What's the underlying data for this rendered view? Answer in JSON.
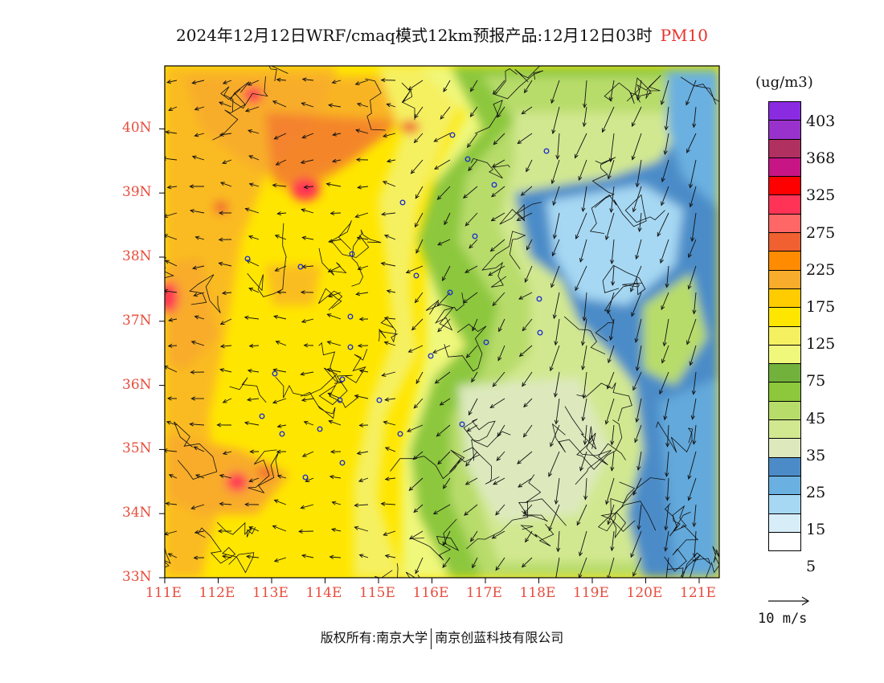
{
  "title": {
    "main": "2024年12月12日WRF/cmaq模式12km预报产品:12月12日03时",
    "variable": "PM10",
    "variable_color": "#e8322d"
  },
  "axes": {
    "lat_labels": [
      "40N",
      "39N",
      "38N",
      "37N",
      "36N",
      "35N",
      "34N",
      "33N"
    ],
    "lon_labels": [
      "111E",
      "112E",
      "113E",
      "114E",
      "115E",
      "116E",
      "117E",
      "118E",
      "119E",
      "120E",
      "121E"
    ],
    "lat_range": [
      33,
      41
    ],
    "lon_range": [
      111,
      121.4
    ]
  },
  "legend": {
    "unit": "(ug/m3)",
    "colors": [
      "#8a2be2",
      "#9932cc",
      "#b03060",
      "#c71585",
      "#ff0000",
      "#ff3355",
      "#ff6666",
      "#f06030",
      "#ff8c00",
      "#f8ac2c",
      "#ffcc00",
      "#ffe600",
      "#f5f060",
      "#f0f87c",
      "#72b13c",
      "#8cc73c",
      "#b8dc6a",
      "#d2e890",
      "#dde9bd",
      "#4b8cc8",
      "#6ab0e0",
      "#a6d8f3",
      "#d7eef9",
      "#ffffff"
    ],
    "labels": [
      "403",
      "368",
      "325",
      "275",
      "225",
      "175",
      "125",
      "75",
      "45",
      "35",
      "25",
      "15",
      "5"
    ]
  },
  "wind_reference": {
    "label": "10 m/s"
  },
  "footer": {
    "left": "版权所有:南京大学",
    "right": "南京创蓝科技有限公司"
  }
}
